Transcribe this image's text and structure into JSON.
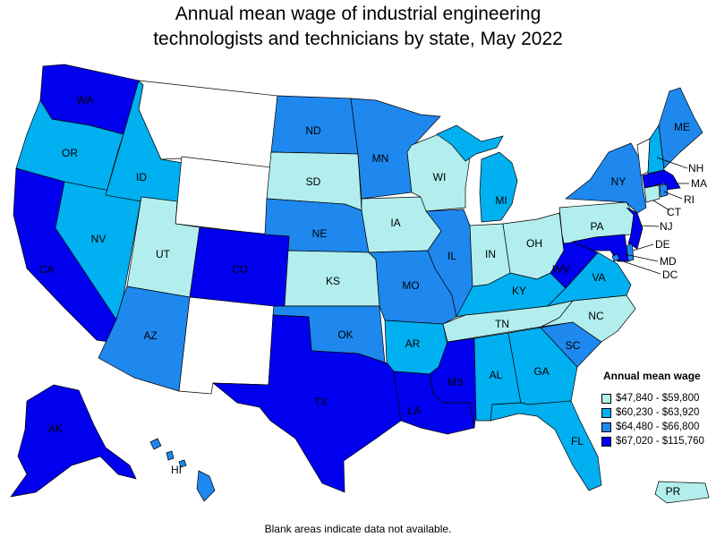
{
  "title_line1": "Annual mean wage of industrial engineering",
  "title_line2": "technologists and technicians by state, May 2022",
  "footnote": "Blank areas indicate data not available.",
  "legend": {
    "title": "Annual mean wage",
    "bins": [
      {
        "label": "$47,840 - $59,800",
        "color": "#b2eeee"
      },
      {
        "label": "$60,230 - $63,920",
        "color": "#00b0f0"
      },
      {
        "label": "$64,480 - $66,800",
        "color": "#1e88ee"
      },
      {
        "label": "$67,020 - $115,760",
        "color": "#0000ee"
      }
    ]
  },
  "states": {
    "WA": {
      "label": "WA",
      "bin": 3
    },
    "OR": {
      "label": "OR",
      "bin": 1
    },
    "CA": {
      "label": "CA",
      "bin": 3
    },
    "NV": {
      "label": "NV",
      "bin": 1
    },
    "ID": {
      "label": "ID",
      "bin": 1
    },
    "MT": {
      "label": "",
      "bin": null
    },
    "WY": {
      "label": "",
      "bin": null
    },
    "UT": {
      "label": "UT",
      "bin": 0
    },
    "AZ": {
      "label": "AZ",
      "bin": 2
    },
    "CO": {
      "label": "CO",
      "bin": 3
    },
    "NM": {
      "label": "",
      "bin": null
    },
    "ND": {
      "label": "ND",
      "bin": 2
    },
    "SD": {
      "label": "SD",
      "bin": 0
    },
    "NE": {
      "label": "NE",
      "bin": 2
    },
    "KS": {
      "label": "KS",
      "bin": 0
    },
    "OK": {
      "label": "OK",
      "bin": 2
    },
    "TX": {
      "label": "TX",
      "bin": 3
    },
    "MN": {
      "label": "MN",
      "bin": 2
    },
    "IA": {
      "label": "IA",
      "bin": 0
    },
    "MO": {
      "label": "MO",
      "bin": 2
    },
    "AR": {
      "label": "AR",
      "bin": 1
    },
    "LA": {
      "label": "LA",
      "bin": 3
    },
    "WI": {
      "label": "WI",
      "bin": 0
    },
    "IL": {
      "label": "IL",
      "bin": 2
    },
    "MI": {
      "label": "MI",
      "bin": 1
    },
    "IN": {
      "label": "IN",
      "bin": 0
    },
    "OH": {
      "label": "OH",
      "bin": 0
    },
    "KY": {
      "label": "KY",
      "bin": 1
    },
    "TN": {
      "label": "TN",
      "bin": 0
    },
    "MS": {
      "label": "MS",
      "bin": 3
    },
    "AL": {
      "label": "AL",
      "bin": 1
    },
    "GA": {
      "label": "GA",
      "bin": 1
    },
    "FL": {
      "label": "FL",
      "bin": 1
    },
    "SC": {
      "label": "SC",
      "bin": 2
    },
    "NC": {
      "label": "NC",
      "bin": 0
    },
    "VA": {
      "label": "VA",
      "bin": 1
    },
    "WV": {
      "label": "WV",
      "bin": 3
    },
    "PA": {
      "label": "PA",
      "bin": 0
    },
    "NY": {
      "label": "NY",
      "bin": 2
    },
    "VT": {
      "label": "",
      "bin": null
    },
    "NH": {
      "label": "NH",
      "bin": 1
    },
    "ME": {
      "label": "ME",
      "bin": 2
    },
    "MA": {
      "label": "MA",
      "bin": 3
    },
    "RI": {
      "label": "RI",
      "bin": 2
    },
    "CT": {
      "label": "CT",
      "bin": 0
    },
    "NJ": {
      "label": "NJ",
      "bin": 3
    },
    "DE": {
      "label": "DE",
      "bin": 2
    },
    "MD": {
      "label": "MD",
      "bin": 3
    },
    "DC": {
      "label": "DC",
      "bin": 2
    },
    "AK": {
      "label": "AK",
      "bin": 3
    },
    "HI": {
      "label": "HI",
      "bin": 2
    },
    "PR": {
      "label": "PR",
      "bin": 0
    }
  }
}
